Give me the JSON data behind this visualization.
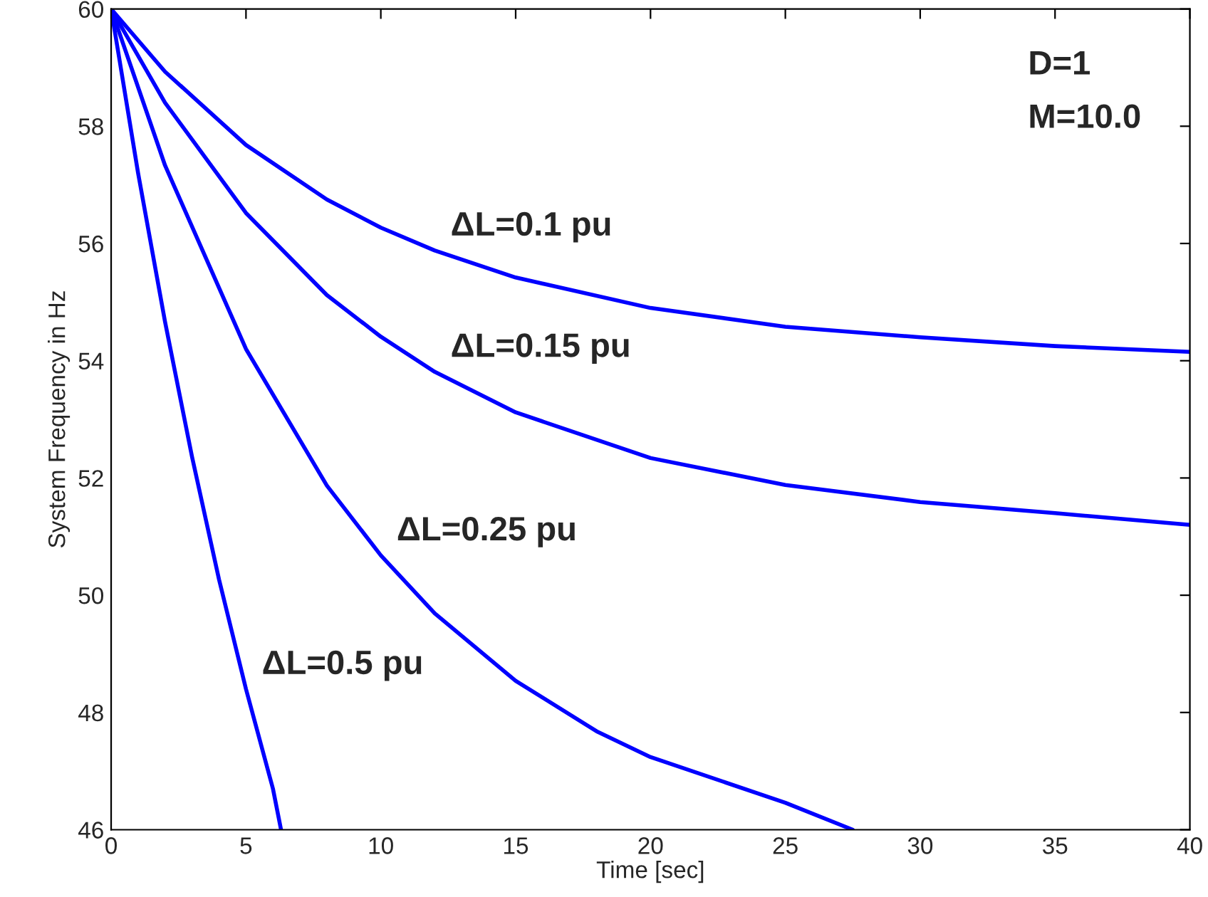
{
  "chart_data": {
    "type": "line",
    "xlabel": "Time [sec]",
    "ylabel": "System Frequency in Hz",
    "xlim": [
      0,
      40
    ],
    "ylim": [
      46,
      60
    ],
    "xticks": [
      0,
      5,
      10,
      15,
      20,
      25,
      30,
      35,
      40
    ],
    "yticks": [
      46,
      48,
      50,
      52,
      54,
      56,
      58,
      60
    ],
    "grid": false,
    "marker": "none",
    "line_style": "solid",
    "series": [
      {
        "color": "#0000ff",
        "x": [
          0,
          2,
          5,
          8,
          10,
          12,
          15,
          20,
          25,
          30,
          35,
          40
        ],
        "values": [
          60,
          58.93,
          57.68,
          56.75,
          56.27,
          55.88,
          55.42,
          54.9,
          54.58,
          54.4,
          54.25,
          54.15
        ]
      },
      {
        "color": "#0000ff",
        "x": [
          0,
          2,
          5,
          8,
          10,
          12,
          15,
          20,
          25,
          30,
          35,
          40
        ],
        "values": [
          60,
          58.4,
          56.52,
          55.12,
          54.41,
          53.81,
          53.12,
          52.34,
          51.88,
          51.59,
          51.4,
          51.2
        ]
      },
      {
        "color": "#0000ff",
        "x": [
          0,
          2,
          5,
          8,
          10,
          12,
          15,
          18,
          20,
          25,
          27.5
        ],
        "values": [
          60,
          57.33,
          54.2,
          51.87,
          50.68,
          49.69,
          48.54,
          47.68,
          47.24,
          46.46,
          46.0
        ]
      },
      {
        "color": "#0000ff",
        "x": [
          0,
          1,
          2,
          3,
          4,
          5,
          6,
          6.3
        ],
        "values": [
          60,
          57.2,
          54.66,
          52.36,
          50.27,
          48.4,
          46.7,
          46.0
        ]
      }
    ],
    "annotations": [
      "D=1",
      "M=10.0",
      {
        "text": "ΔL=0.1 pu",
        "x": 12,
        "y": 55.88
      },
      {
        "text": "ΔL=0.15 pu",
        "x": 12,
        "y": 53.81
      },
      {
        "text": "ΔL=0.25 pu",
        "x": 10,
        "y": 50.68
      },
      {
        "text": "ΔL=0.5 pu",
        "x": 5,
        "y": 48.4
      }
    ]
  }
}
